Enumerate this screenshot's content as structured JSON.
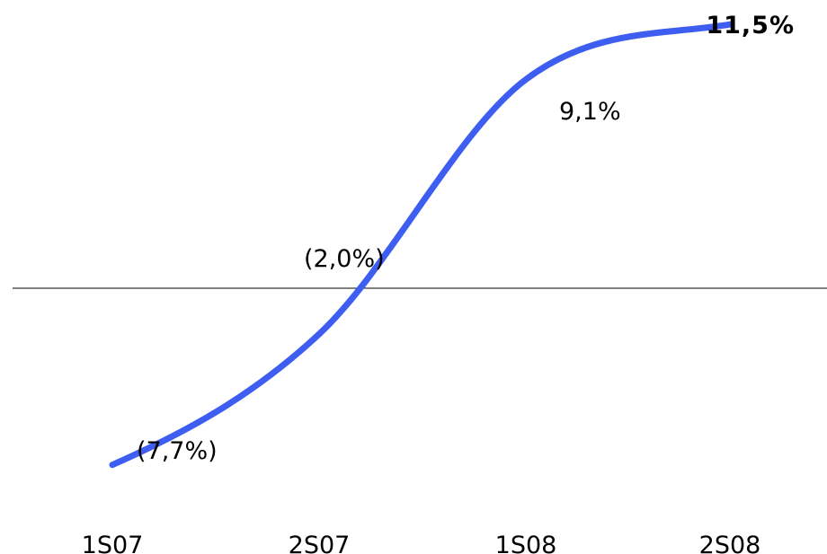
{
  "chart_data": {
    "type": "line",
    "categories": [
      "1S07",
      "2S07",
      "1S08",
      "2S08"
    ],
    "series": [
      {
        "values": [
          -7.7,
          -2.0,
          9.1,
          11.5
        ],
        "labels": [
          "(7,7%)",
          "(2,0%)",
          "9,1%",
          "11,5%"
        ],
        "color": "#3D5EF0"
      }
    ],
    "highlight_color": "#3D5EF0",
    "baseline": 0,
    "grid": false,
    "legend": "none"
  }
}
